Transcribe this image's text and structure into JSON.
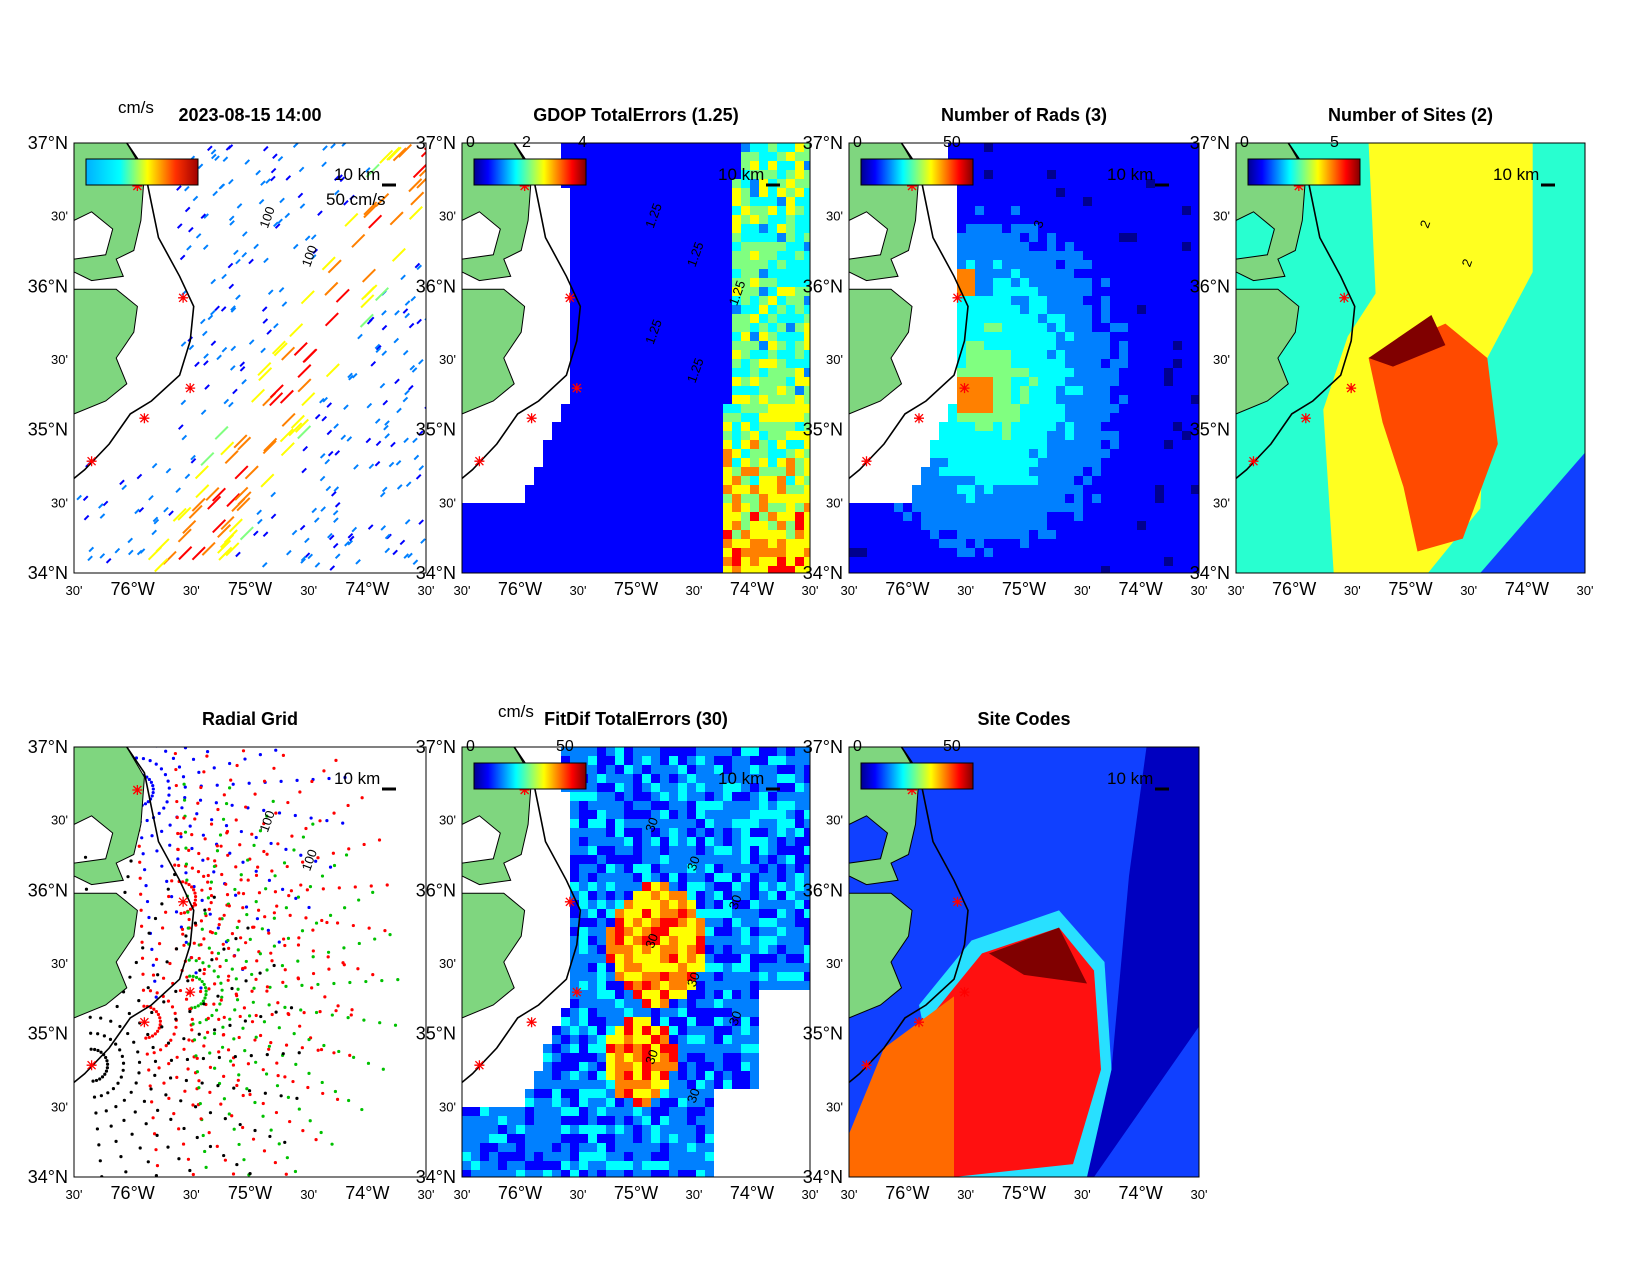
{
  "figure": {
    "timestamp": "2023-08-15 14:00",
    "colors": {
      "land": "#7fd67f",
      "coast": "#000000",
      "jet_colormap": [
        "#00008f",
        "#0000ff",
        "#0080ff",
        "#00ffff",
        "#80ff80",
        "#ffff00",
        "#ff8000",
        "#ff0000",
        "#800000"
      ]
    },
    "axes": {
      "lat_labels": [
        "37°N",
        "30'",
        "36°N",
        "30'",
        "35°N",
        "30'",
        "34°N"
      ],
      "lon_labels": [
        "30'",
        "76°W",
        "30'",
        "75°W",
        "30'",
        "74°W",
        "30'"
      ]
    },
    "panels": [
      {
        "id": "currents",
        "title": "2023-08-15 14:00",
        "units": "cm/s",
        "cb_ticks": [],
        "scale": "10 km",
        "vector_scale": "50 cm/s",
        "contours": [
          "100",
          "100"
        ],
        "kind": "currents"
      },
      {
        "id": "gdop",
        "title": "GDOP TotalErrors (1.25)",
        "units": "",
        "cb_ticks": [
          "0",
          "2",
          "4"
        ],
        "scale": "10 km",
        "contours": [
          "1.25",
          "1.25",
          "1.25",
          "1.25",
          "1.25"
        ],
        "kind": "gdop"
      },
      {
        "id": "rads",
        "title": "Number of Rads (3)",
        "units": "",
        "cb_ticks": [
          "0",
          "50"
        ],
        "scale": "10 km",
        "contours": [
          "3"
        ],
        "kind": "rads"
      },
      {
        "id": "sites",
        "title": "Number of Sites (2)",
        "units": "",
        "cb_ticks": [
          "0",
          "5"
        ],
        "scale": "10 km",
        "contours": [
          "2",
          "2"
        ],
        "kind": "sites"
      },
      {
        "id": "radial",
        "title": "Radial Grid",
        "units": "",
        "cb_ticks": [],
        "scale": "10 km",
        "contours": [
          "100",
          "100"
        ],
        "kind": "radial"
      },
      {
        "id": "fitdif",
        "title": "FitDif TotalErrors (30)",
        "units": "cm/s",
        "cb_ticks": [
          "0",
          "50"
        ],
        "scale": "10 km",
        "contours": [
          "30",
          "30",
          "30",
          "30",
          "30",
          "30",
          "30",
          "30"
        ],
        "kind": "fitdif"
      },
      {
        "id": "codes",
        "title": "Site Codes",
        "units": "",
        "cb_ticks": [
          "0",
          "50"
        ],
        "scale": "10 km",
        "contours": [],
        "kind": "codes"
      }
    ]
  }
}
